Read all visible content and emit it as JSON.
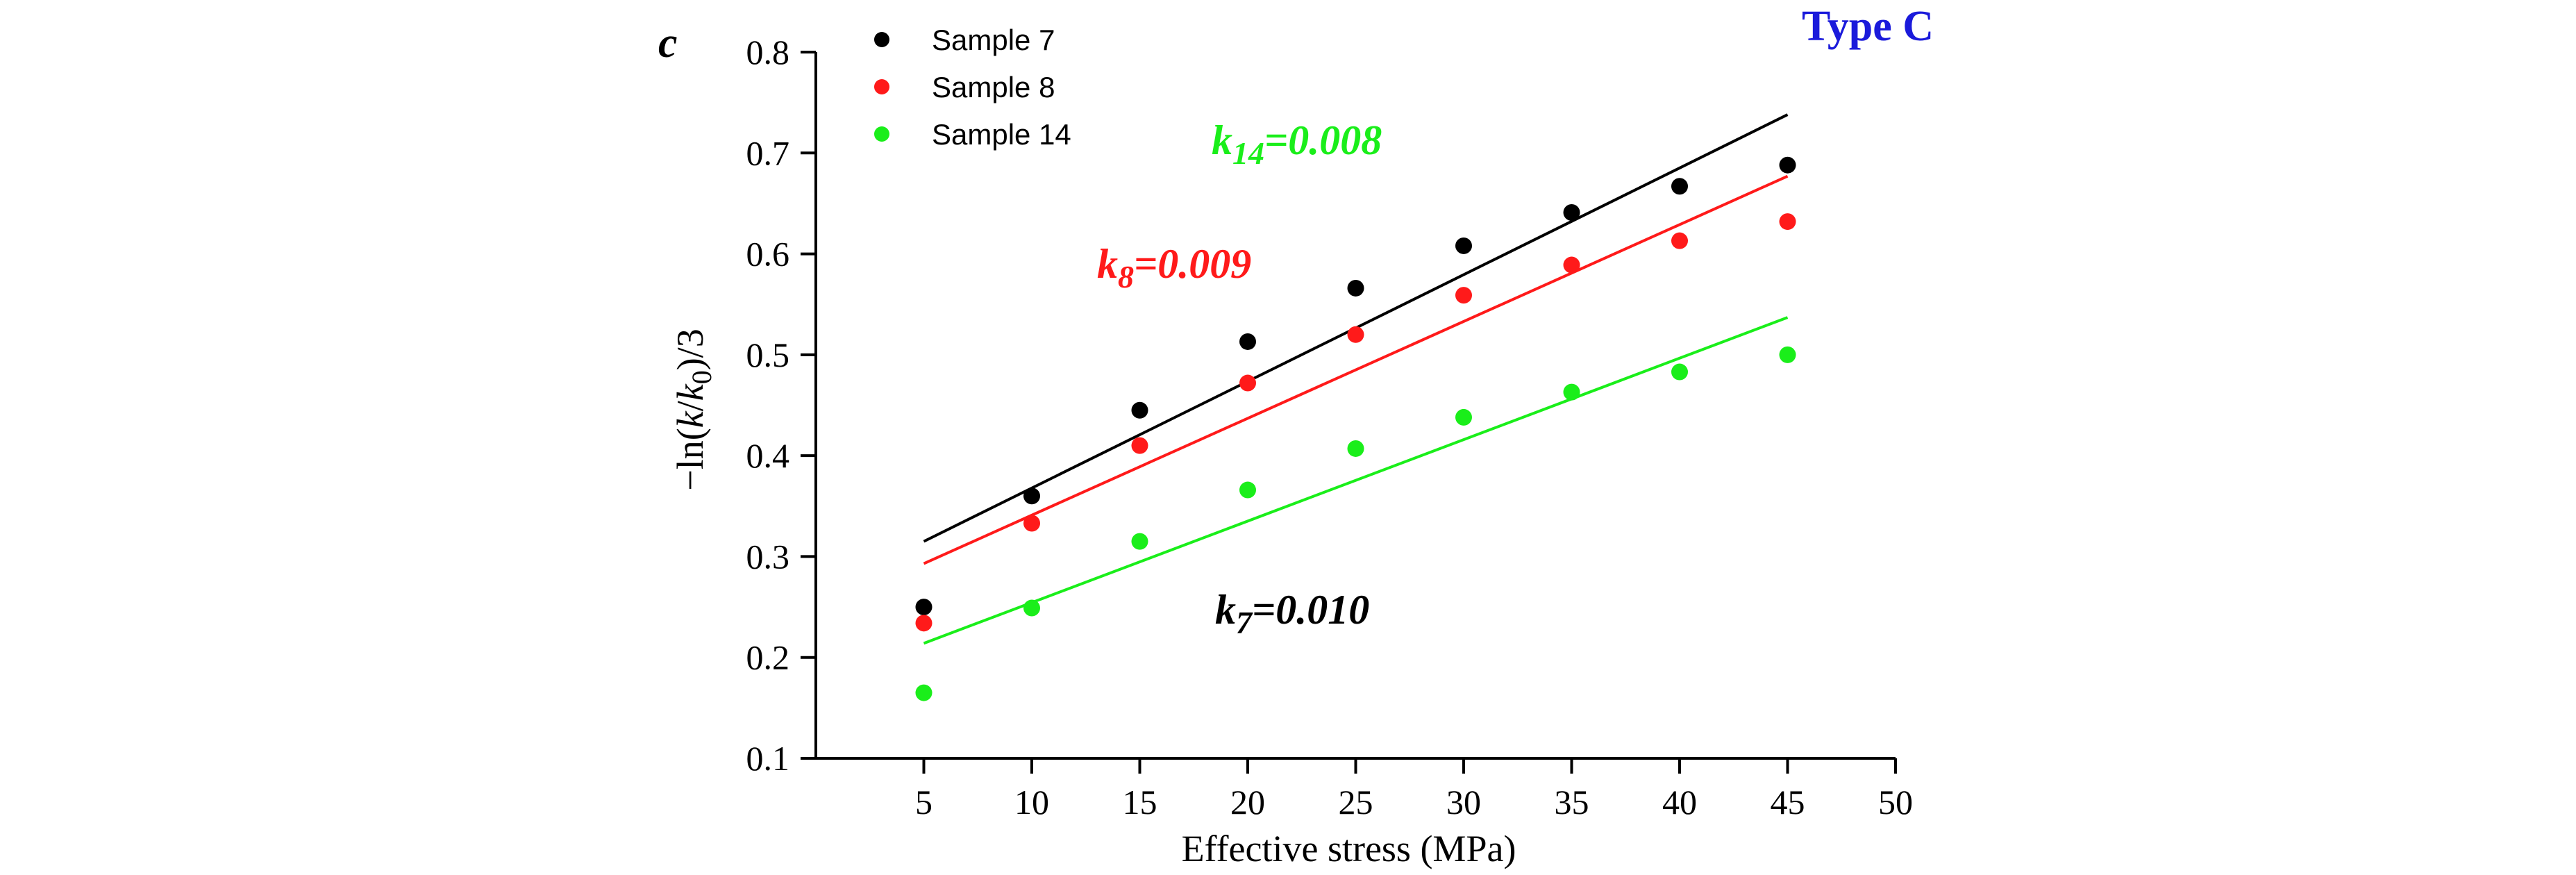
{
  "chart_data": {
    "type": "scatter",
    "panel_label": "c",
    "type_label": "Type C",
    "xlabel": "Effective stress (MPa)",
    "ylabel_parts": [
      "−ln(",
      "k",
      "/",
      "k",
      "0",
      ")/3"
    ],
    "xlim": [
      0,
      50
    ],
    "ylim": [
      0.1,
      0.8
    ],
    "xticks": [
      5,
      10,
      15,
      20,
      25,
      30,
      35,
      40,
      45,
      50
    ],
    "yticks": [
      0.1,
      0.2,
      0.3,
      0.4,
      0.5,
      0.6,
      0.7,
      0.8
    ],
    "ytick_labels": [
      "0.1",
      "0.2",
      "0.3",
      "0.4",
      "0.5",
      "0.6",
      "0.7",
      "0.8"
    ],
    "x": [
      5,
      10,
      15,
      20,
      25,
      30,
      35,
      40,
      45
    ],
    "series": [
      {
        "name": "Sample 7",
        "color": "#000000",
        "values": [
          0.25,
          0.36,
          0.445,
          0.513,
          0.566,
          0.608,
          0.641,
          0.667,
          0.688
        ],
        "fit_line": {
          "x": [
            5,
            45
          ],
          "y": [
            0.315,
            0.738
          ]
        }
      },
      {
        "name": "Sample 8",
        "color": "#ff1a1a",
        "values": [
          0.234,
          0.333,
          0.41,
          0.472,
          0.52,
          0.559,
          0.589,
          0.613,
          0.632
        ],
        "fit_line": {
          "x": [
            5,
            45
          ],
          "y": [
            0.293,
            0.677
          ]
        }
      },
      {
        "name": "Sample 14",
        "color": "#1aee1a",
        "values": [
          0.165,
          0.249,
          0.315,
          0.366,
          0.407,
          0.438,
          0.463,
          0.483,
          0.5
        ],
        "fit_line": {
          "x": [
            5,
            45
          ],
          "y": [
            0.214,
            0.537
          ]
        }
      }
    ],
    "annotations": [
      {
        "prefix": "k",
        "sub": "14",
        "suffix": "=0.008",
        "color": "#1aee1a"
      },
      {
        "prefix": "k",
        "sub": "8",
        "suffix": "=0.009",
        "color": "#ff1a1a"
      },
      {
        "prefix": "k",
        "sub": "7",
        "suffix": "=0.010",
        "color": "#000000"
      }
    ],
    "legend_position": "top-left"
  }
}
